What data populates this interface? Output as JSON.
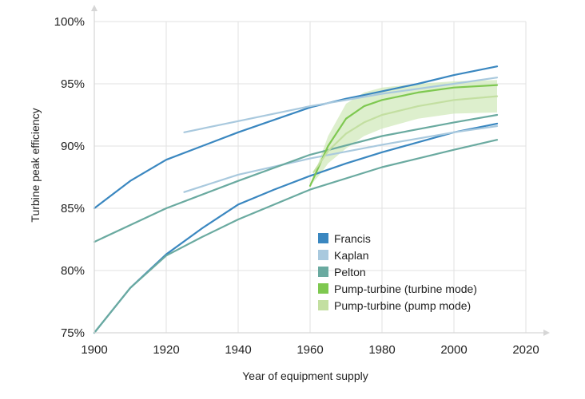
{
  "chart_data": {
    "type": "line",
    "xlabel": "Year of equipment supply",
    "ylabel": "Turbine peak efficiency",
    "xlim": [
      1900,
      2020
    ],
    "ylim": [
      75,
      100
    ],
    "x_ticks": [
      "1900",
      "1920",
      "1940",
      "1960",
      "1980",
      "2000",
      "2020"
    ],
    "y_ticks": [
      "75%",
      "80%",
      "85%",
      "90%",
      "95%",
      "100%"
    ],
    "grid": true,
    "legend_position": "lower-right",
    "series": [
      {
        "name": "Francis",
        "color": "#3a87c0",
        "lines": [
          [
            [
              1900,
              85.0
            ],
            [
              1910,
              87.2
            ],
            [
              1920,
              88.9
            ],
            [
              1930,
              90.0
            ],
            [
              1940,
              91.1
            ],
            [
              1950,
              92.1
            ],
            [
              1960,
              93.1
            ],
            [
              1970,
              93.8
            ],
            [
              1980,
              94.4
            ],
            [
              1990,
              95.0
            ],
            [
              2000,
              95.7
            ],
            [
              2012,
              96.4
            ]
          ],
          [
            [
              1900,
              75.0
            ],
            [
              1910,
              78.6
            ],
            [
              1920,
              81.3
            ],
            [
              1930,
              83.4
            ],
            [
              1940,
              85.3
            ],
            [
              1950,
              86.5
            ],
            [
              1960,
              87.6
            ],
            [
              1970,
              88.6
            ],
            [
              1980,
              89.5
            ],
            [
              1990,
              90.3
            ],
            [
              2000,
              91.1
            ],
            [
              2012,
              91.8
            ]
          ]
        ]
      },
      {
        "name": "Kaplan",
        "color": "#a9c9de",
        "lines": [
          [
            [
              1925,
              91.1
            ],
            [
              1940,
              92.0
            ],
            [
              1960,
              93.2
            ],
            [
              1980,
              94.2
            ],
            [
              2000,
              95.0
            ],
            [
              2012,
              95.5
            ]
          ],
          [
            [
              1925,
              86.3
            ],
            [
              1940,
              87.7
            ],
            [
              1960,
              89.0
            ],
            [
              1980,
              90.1
            ],
            [
              2000,
              91.1
            ],
            [
              2012,
              91.6
            ]
          ]
        ]
      },
      {
        "name": "Pelton",
        "color": "#6aaaa0",
        "lines": [
          [
            [
              1900,
              82.3
            ],
            [
              1920,
              85.0
            ],
            [
              1940,
              87.2
            ],
            [
              1960,
              89.3
            ],
            [
              1980,
              90.8
            ],
            [
              2000,
              91.9
            ],
            [
              2012,
              92.5
            ]
          ],
          [
            [
              1900,
              75.0
            ],
            [
              1910,
              78.6
            ],
            [
              1920,
              81.2
            ],
            [
              1930,
              82.7
            ],
            [
              1940,
              84.1
            ],
            [
              1960,
              86.5
            ],
            [
              1980,
              88.3
            ],
            [
              2000,
              89.7
            ],
            [
              2012,
              90.5
            ]
          ]
        ]
      },
      {
        "name": "Pump-turbine (turbine mode)",
        "color": "#7ec850",
        "lines": [
          [
            [
              1960,
              86.8
            ],
            [
              1965,
              90.0
            ],
            [
              1970,
              92.2
            ],
            [
              1975,
              93.2
            ],
            [
              1980,
              93.7
            ],
            [
              1990,
              94.3
            ],
            [
              2000,
              94.7
            ],
            [
              2012,
              94.9
            ]
          ]
        ]
      },
      {
        "name": "Pump-turbine (pump mode)",
        "color": "#c3dfa1",
        "lines": [
          [
            [
              1961,
              87.9
            ],
            [
              1965,
              89.6
            ],
            [
              1970,
              91.0
            ],
            [
              1975,
              91.9
            ],
            [
              1980,
              92.5
            ],
            [
              1990,
              93.2
            ],
            [
              2000,
              93.7
            ],
            [
              2012,
              94.0
            ]
          ]
        ]
      }
    ],
    "band": {
      "color": "#cfe8b8",
      "upper": [
        [
          1960,
          86.8
        ],
        [
          1965,
          90.8
        ],
        [
          1970,
          93.4
        ],
        [
          1975,
          94.3
        ],
        [
          1980,
          94.7
        ],
        [
          1990,
          95.0
        ],
        [
          2000,
          95.2
        ],
        [
          2012,
          95.3
        ]
      ],
      "lower": [
        [
          1960,
          86.8
        ],
        [
          1963,
          87.8
        ],
        [
          1965,
          88.6
        ],
        [
          1970,
          89.8
        ],
        [
          1975,
          90.8
        ],
        [
          1980,
          91.4
        ],
        [
          1990,
          92.2
        ],
        [
          2000,
          92.6
        ],
        [
          2012,
          92.7
        ]
      ]
    }
  }
}
